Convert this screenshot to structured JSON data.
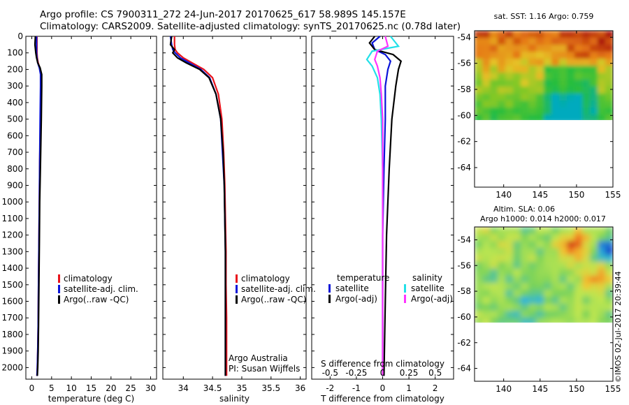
{
  "header": {
    "line1": "Argo profile: CS 7900311_272 24-Jun-2017 20170625_617 58.989S 145.157E",
    "line2": "Climatology: CARS2009. Satellite-adjusted climatology: synTS_20170625.nc (0.78d later)"
  },
  "credit": "©IMOS 02-Jul-2017 20:39:44",
  "colors": {
    "climatology": "#e8141c",
    "satellite": "#0a14d8",
    "argo": "#000000",
    "sal_satellite": "#22e0e8",
    "sal_argo": "#ff33ff"
  },
  "chart_data": [
    {
      "id": "temperature",
      "type": "line",
      "xlabel": "temperature (deg C)",
      "ylabel": "",
      "xlim": [
        -1.5,
        31.5
      ],
      "ylim": [
        2070,
        0
      ],
      "xticks": [
        0,
        5,
        10,
        15,
        20,
        25,
        30
      ],
      "yticks": [
        0,
        100,
        200,
        300,
        400,
        500,
        600,
        700,
        800,
        900,
        1000,
        1100,
        1200,
        1300,
        1400,
        1500,
        1600,
        1700,
        1800,
        1900,
        2000
      ],
      "legend": {
        "placement": "lower-middle",
        "entries": [
          "climatology",
          "satellite-adj. clim.",
          "Argo(..raw -QC)"
        ]
      },
      "series": [
        {
          "name": "climatology",
          "color": "#e8141c",
          "x": [
            1.3,
            1.3,
            1.3,
            1.4,
            1.6,
            2.0,
            2.3,
            2.3,
            2.2,
            2.0,
            1.9,
            1.8,
            1.7,
            1.6,
            1.5,
            1.4,
            1.3
          ],
          "y": [
            0,
            50,
            100,
            130,
            160,
            190,
            230,
            300,
            500,
            750,
            1000,
            1250,
            1500,
            1750,
            1900,
            2000,
            2050
          ]
        },
        {
          "name": "satellite-adj. clim.",
          "color": "#0a14d8",
          "x": [
            1.2,
            1.2,
            1.2,
            1.3,
            1.5,
            1.9,
            2.2,
            2.2,
            2.1,
            2.0,
            1.9,
            1.8,
            1.7,
            1.6,
            1.5,
            1.4,
            1.3
          ],
          "y": [
            0,
            50,
            100,
            130,
            160,
            190,
            230,
            300,
            500,
            750,
            1000,
            1250,
            1500,
            1750,
            1900,
            2000,
            2050
          ]
        },
        {
          "name": "Argo(..raw -QC)",
          "color": "#000000",
          "x": [
            0.9,
            0.8,
            1.0,
            1.2,
            1.5,
            2.1,
            2.5,
            2.5,
            2.4,
            2.2,
            2.0,
            1.9,
            1.8,
            1.7,
            1.6,
            1.5,
            1.4
          ],
          "y": [
            0,
            50,
            100,
            130,
            160,
            190,
            230,
            300,
            500,
            750,
            1000,
            1250,
            1500,
            1750,
            1900,
            2000,
            2050
          ]
        }
      ]
    },
    {
      "id": "salinity",
      "type": "line",
      "xlabel": "salinity",
      "ylabel": "",
      "xlim": [
        33.65,
        36.1
      ],
      "ylim": [
        2070,
        0
      ],
      "xticks": [
        34,
        34.5,
        35,
        35.5,
        36
      ],
      "legend": {
        "placement": "lower-right",
        "entries": [
          "climatology",
          "satellite-adj. clim.",
          "Argo(..raw -QC)"
        ]
      },
      "annotations": [
        "Argo Australia",
        "PI: Susan Wijffels"
      ],
      "series": [
        {
          "name": "climatology",
          "color": "#e8141c",
          "x": [
            33.85,
            33.85,
            33.86,
            33.9,
            34.0,
            34.15,
            34.35,
            34.5,
            34.6,
            34.66,
            34.69,
            34.71,
            34.72,
            34.73,
            34.73,
            34.74,
            34.74,
            34.74
          ],
          "y": [
            0,
            50,
            80,
            100,
            130,
            160,
            200,
            250,
            350,
            500,
            700,
            900,
            1100,
            1300,
            1500,
            1700,
            1900,
            2050
          ]
        },
        {
          "name": "satellite-adj. clim.",
          "color": "#0a14d8",
          "x": [
            33.78,
            33.8,
            33.82,
            33.86,
            33.95,
            34.1,
            34.3,
            34.45,
            34.56,
            34.64,
            34.67,
            34.7,
            34.71,
            34.72,
            34.72,
            34.72,
            34.72,
            34.72
          ],
          "y": [
            0,
            50,
            80,
            100,
            130,
            160,
            200,
            250,
            350,
            500,
            700,
            900,
            1100,
            1300,
            1500,
            1700,
            1900,
            2050
          ]
        },
        {
          "name": "Argo(..raw -QC)",
          "color": "#000000",
          "x": [
            33.8,
            33.78,
            33.85,
            33.82,
            33.9,
            34.05,
            34.28,
            34.44,
            34.56,
            34.64,
            34.68,
            34.7,
            34.71,
            34.72,
            34.72,
            34.72,
            34.72,
            34.72
          ],
          "y": [
            0,
            50,
            80,
            100,
            130,
            160,
            200,
            250,
            350,
            500,
            700,
            900,
            1100,
            1300,
            1500,
            1700,
            1900,
            2050
          ]
        }
      ]
    },
    {
      "id": "difference",
      "type": "line",
      "xlabel": "T difference from climatology",
      "xlabel_top": "S difference from climatology",
      "ylabel": "",
      "xlim": [
        -2.7,
        2.7
      ],
      "ylim": [
        2070,
        0
      ],
      "xticks": [
        -2,
        -1,
        0,
        1,
        2
      ],
      "xticklabels": [
        "-2",
        "-1",
        "0",
        "1",
        "2"
      ],
      "xticks_top": [
        -2,
        -1,
        0,
        1,
        2
      ],
      "xticklabels_top": [
        "-0.5",
        "-0.25",
        "0",
        "0.25",
        "0.5"
      ],
      "legend": {
        "placement": "lower-middle",
        "groups": [
          {
            "title": "temperature",
            "entries": [
              "satellite",
              "Argo(-adj)"
            ]
          },
          {
            "title": "salinity",
            "entries": [
              "satellite",
              "Argo(-adj)"
            ]
          }
        ]
      },
      "series": [
        {
          "name": "temperature satellite",
          "color": "#0a14d8",
          "x": [
            -0.1,
            -0.4,
            -0.3,
            0.1,
            0.3,
            0.2,
            0.1,
            0.1,
            0.05,
            0.0,
            0.0,
            0.0
          ],
          "y": [
            0,
            40,
            80,
            110,
            150,
            200,
            300,
            500,
            800,
            1200,
            1600,
            2050
          ]
        },
        {
          "name": "temperature Argo(-adj)",
          "color": "#000000",
          "x": [
            -0.3,
            -0.5,
            -0.3,
            0.4,
            0.7,
            0.6,
            0.5,
            0.35,
            0.25,
            0.15,
            0.1,
            0.05
          ],
          "y": [
            0,
            40,
            80,
            110,
            150,
            200,
            300,
            500,
            800,
            1200,
            1600,
            2050
          ]
        },
        {
          "name": "salinity satellite",
          "color": "#22e0e8",
          "x": [
            0.3,
            0.6,
            -0.4,
            -0.6,
            -0.4,
            -0.2,
            -0.1,
            -0.05,
            0.0,
            0.0,
            0.0,
            0.0
          ],
          "y": [
            0,
            60,
            90,
            140,
            180,
            250,
            350,
            500,
            800,
            1200,
            1600,
            2050
          ]
        },
        {
          "name": "salinity Argo(-adj)",
          "color": "#ff33ff",
          "x": [
            0.1,
            0.2,
            -0.2,
            -0.3,
            -0.2,
            -0.1,
            -0.05,
            0.0,
            0.0,
            0.0,
            0.0,
            0.0
          ],
          "y": [
            0,
            60,
            90,
            140,
            180,
            250,
            350,
            500,
            800,
            1200,
            1600,
            2050
          ]
        }
      ]
    },
    {
      "id": "sst_map",
      "type": "heatmap",
      "title": "sat. SST: 1.16 Argo: 0.759",
      "xlim": [
        136,
        155
      ],
      "ylim": [
        -65.5,
        -53.5
      ],
      "xticks": [
        140,
        145,
        150,
        155
      ],
      "yticks": [
        -54,
        -56,
        -58,
        -60,
        -62,
        -64
      ],
      "data_extent_lat": [
        -60,
        -53.5
      ]
    },
    {
      "id": "sla_map",
      "type": "heatmap",
      "title": "Altim. SLA: 0.06",
      "subtitle": "Argo h1000: 0.014 h2000: 0.017",
      "xlim": [
        136,
        155
      ],
      "ylim": [
        -65,
        -53
      ],
      "xticks": [
        140,
        145,
        150,
        155
      ],
      "yticks": [
        -54,
        -56,
        -58,
        -60,
        -62,
        -64
      ],
      "data_extent_lat": [
        -60,
        -53
      ]
    }
  ]
}
